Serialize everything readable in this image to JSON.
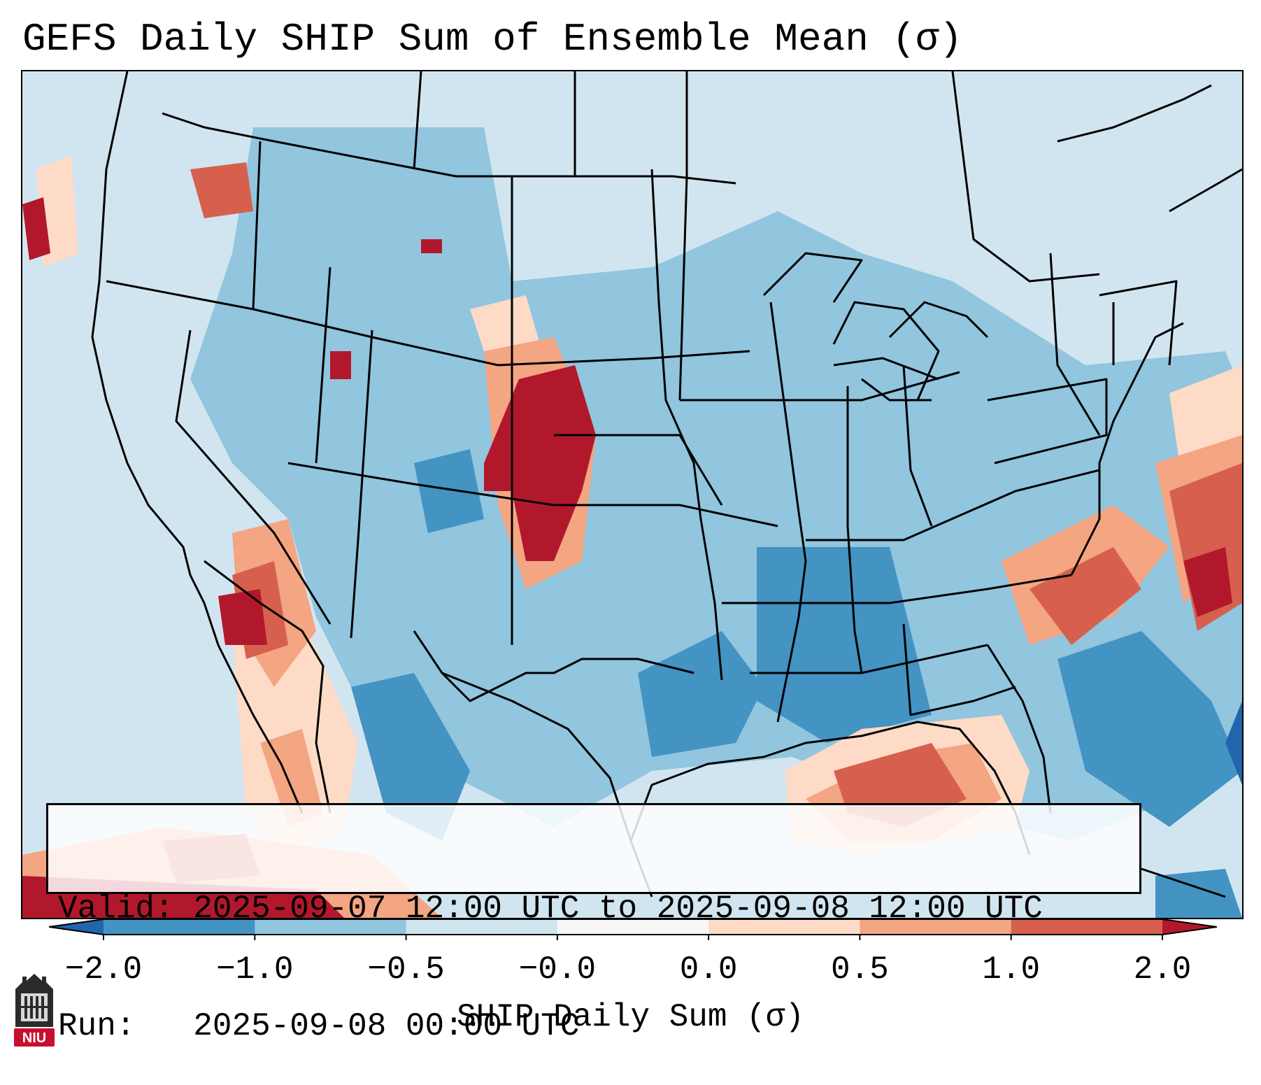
{
  "title": "GEFS Daily SHIP Sum of Ensemble Mean (σ)",
  "info": {
    "valid_label": "Valid:",
    "valid_value": "2025-09-07 12:00 UTC to 2025-09-08 12:00 UTC",
    "run_label": "Run:",
    "run_value": "2025-09-08 00:00 UTC"
  },
  "colorbar": {
    "label": "SHIP Daily Sum (σ)",
    "ticks": [
      "−2.0",
      "−1.0",
      "−0.5",
      "−0.0",
      "0.0",
      "0.5",
      "1.0",
      "2.0"
    ],
    "bins": [
      {
        "from": "−2.0",
        "to": "−1.0",
        "color": "#4393c3"
      },
      {
        "from": "−1.0",
        "to": "−0.5",
        "color": "#92c5de"
      },
      {
        "from": "−0.5",
        "to": "−0.0",
        "color": "#d1e5f0"
      },
      {
        "from": "−0.0",
        "to": "0.0",
        "color": "#f7f7f7"
      },
      {
        "from": "0.0",
        "to": "0.5",
        "color": "#fddbc7"
      },
      {
        "from": "0.5",
        "to": "1.0",
        "color": "#f4a582"
      },
      {
        "from": "1.0",
        "to": "2.0",
        "color": "#d6604d"
      }
    ],
    "under_color": "#2166ac",
    "over_color": "#b2182b"
  },
  "logo": {
    "text": "NIU",
    "color": "#c8102e"
  }
}
